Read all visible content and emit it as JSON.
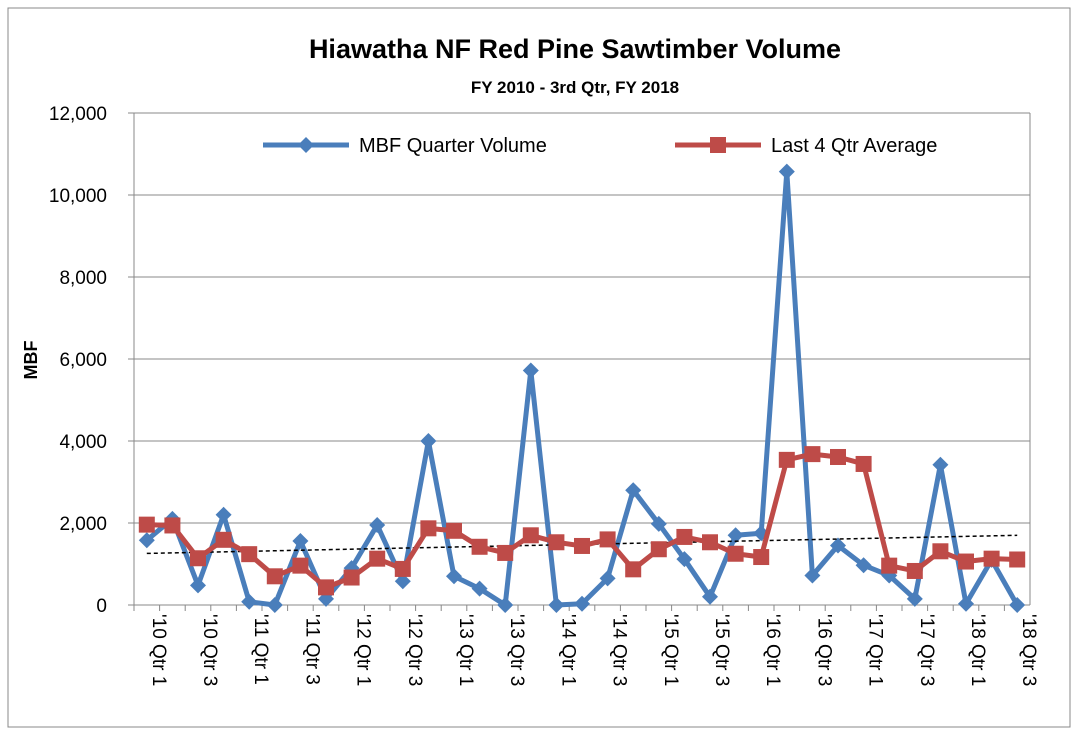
{
  "chart_data": {
    "type": "line",
    "title": "Hiawatha NF Red Pine Sawtimber Volume",
    "subtitle": "FY 2010 - 3rd Qtr, FY 2018",
    "y_label": "MBF",
    "categories": [
      "'10 Qtr 1",
      null,
      "'10 Qtr 3",
      null,
      "'11 Qtr 1",
      null,
      "'11 Qtr 3",
      null,
      "'12 Qtr 1",
      null,
      "'12 Qtr 3",
      null,
      "'13 Qtr 1",
      null,
      "'13 Qtr 3",
      null,
      "'14 Qtr 1",
      null,
      "'14 Qtr 3",
      null,
      "'15 Qtr 1",
      null,
      "'15 Qtr 3",
      null,
      "'16 Qtr 1",
      null,
      "'16 Qtr 3",
      null,
      "'17 Qtr 1",
      null,
      "'17 Qtr 3",
      null,
      "'18 Qtr 1",
      null,
      "'18 Qtr 3"
    ],
    "series": [
      {
        "name": "MBF Quarter Volume",
        "color": "#4a7ebb",
        "marker": "diamond",
        "values": [
          1580,
          2100,
          480,
          2200,
          80,
          0,
          1560,
          150,
          900,
          1950,
          580,
          4000,
          700,
          400,
          0,
          5720,
          0,
          30,
          650,
          2800,
          1980,
          1120,
          200,
          1700,
          1750,
          10570,
          720,
          1450,
          970,
          720,
          150,
          3420,
          30,
          1100,
          0
        ],
        "trendline": true
      },
      {
        "name": "Last 4 Qtr Average",
        "color": "#be4b48",
        "marker": "square",
        "values": [
          1960,
          1940,
          1140,
          1590,
          1240,
          700,
          960,
          430,
          670,
          1130,
          880,
          1870,
          1810,
          1420,
          1270,
          1700,
          1530,
          1440,
          1600,
          870,
          1360,
          1660,
          1530,
          1250,
          1170,
          3540,
          3680,
          3610,
          3440,
          960,
          830,
          1310,
          1060,
          1130,
          1110
        ]
      }
    ],
    "ylim": [
      0,
      12000
    ],
    "yticks": [
      0,
      {
        "value": 2000,
        "label": "2,000"
      },
      {
        "value": 4000,
        "label": "4,000"
      },
      {
        "value": 6000,
        "label": "6,000"
      },
      {
        "value": 8000,
        "label": "8,000"
      },
      {
        "value": 10000,
        "label": "10,000"
      },
      {
        "value": 12000,
        "label": "12,000"
      }
    ],
    "grid": true,
    "legend": "top"
  }
}
